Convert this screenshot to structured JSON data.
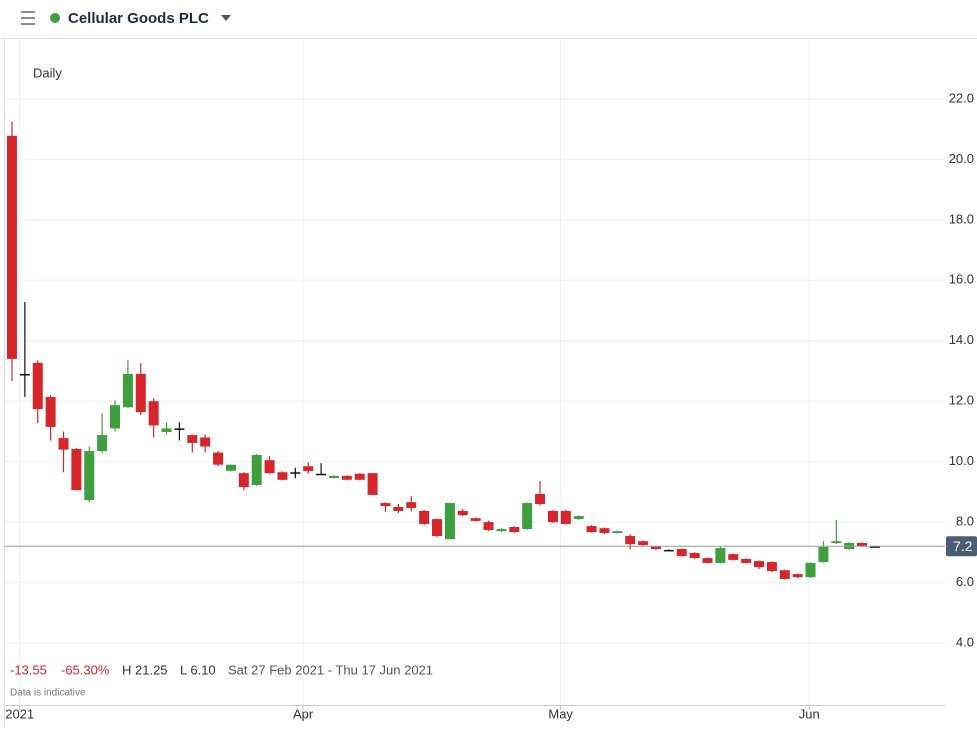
{
  "header": {
    "title": "Cellular Goods PLC"
  },
  "chart_data": {
    "type": "candlestick",
    "interval": "Daily",
    "open": [
      20.78,
      12.9,
      13.27,
      12.14,
      10.78,
      10.42,
      8.73,
      10.35,
      11.1,
      11.8,
      12.9,
      12.0,
      10.98,
      11.1,
      10.88,
      10.8,
      10.3,
      9.7,
      9.62,
      9.23,
      10.05,
      9.65,
      9.65,
      9.85,
      9.6,
      9.46,
      9.53,
      9.6,
      9.62,
      8.63,
      8.5,
      8.66,
      8.37,
      8.1,
      7.44,
      8.37,
      8.13,
      8.0,
      7.7,
      7.84,
      7.77,
      8.93,
      8.37,
      8.37,
      8.1,
      7.87,
      7.8,
      7.64,
      7.54,
      7.37,
      7.2,
      7.08,
      7.11,
      6.98,
      6.81,
      6.65,
      6.94,
      6.78,
      6.71,
      6.68,
      6.41,
      6.28,
      6.18,
      6.68,
      7.31,
      7.11,
      7.31,
      7.2
    ],
    "high": [
      21.25,
      15.28,
      13.35,
      12.2,
      11.0,
      10.45,
      10.5,
      11.6,
      12.03,
      13.36,
      13.26,
      12.1,
      11.3,
      11.3,
      10.9,
      10.9,
      10.35,
      9.9,
      9.65,
      10.25,
      10.18,
      9.68,
      9.8,
      9.98,
      9.95,
      9.55,
      9.55,
      9.62,
      9.62,
      8.65,
      8.6,
      8.86,
      8.4,
      8.12,
      8.65,
      8.43,
      8.15,
      8.05,
      7.8,
      7.86,
      8.65,
      9.36,
      8.4,
      8.4,
      8.22,
      7.9,
      7.82,
      7.72,
      7.6,
      7.39,
      7.22,
      7.1,
      7.13,
      7.0,
      6.83,
      7.18,
      6.96,
      6.8,
      6.73,
      6.7,
      6.43,
      6.3,
      6.67,
      7.37,
      8.07,
      7.33,
      7.33,
      7.22
    ],
    "low": [
      12.67,
      12.14,
      11.28,
      10.7,
      9.65,
      9.05,
      8.66,
      10.3,
      11.0,
      11.78,
      11.54,
      10.8,
      10.9,
      10.7,
      10.3,
      10.3,
      9.85,
      9.68,
      9.05,
      9.2,
      9.6,
      9.38,
      9.45,
      9.6,
      9.58,
      9.45,
      9.38,
      9.38,
      8.9,
      8.33,
      8.3,
      8.35,
      7.9,
      7.5,
      7.42,
      8.2,
      8.02,
      7.7,
      7.68,
      7.65,
      7.75,
      8.55,
      7.98,
      7.92,
      8.08,
      7.65,
      7.6,
      7.62,
      7.1,
      7.22,
      7.08,
      7.05,
      6.86,
      6.79,
      6.63,
      6.63,
      6.73,
      6.63,
      6.45,
      6.35,
      6.1,
      6.15,
      6.15,
      6.66,
      7.28,
      7.09,
      7.18,
      7.18
    ],
    "close": [
      13.4,
      12.9,
      11.74,
      11.15,
      10.4,
      9.06,
      10.35,
      10.88,
      11.87,
      12.9,
      11.64,
      11.2,
      11.1,
      11.1,
      10.62,
      10.5,
      9.9,
      9.9,
      9.16,
      10.22,
      9.62,
      9.4,
      9.65,
      9.69,
      9.6,
      9.53,
      9.4,
      9.4,
      8.9,
      8.53,
      8.37,
      8.47,
      7.94,
      7.54,
      8.63,
      8.23,
      8.04,
      7.74,
      7.77,
      7.67,
      8.63,
      8.6,
      8.0,
      7.94,
      8.2,
      7.67,
      7.64,
      7.7,
      7.27,
      7.24,
      7.11,
      7.08,
      6.88,
      6.81,
      6.65,
      7.14,
      6.75,
      6.65,
      6.51,
      6.38,
      6.12,
      6.18,
      6.65,
      7.18,
      7.37,
      7.31,
      7.2,
      7.2
    ],
    "up_color": "#3f9f3f",
    "down_color": "#d7262b",
    "flat_color": "#111111",
    "last_price": 7.2,
    "ylim": [
      1.95,
      23.95
    ],
    "yticks": [
      {
        "value": 4,
        "label": "4.0"
      },
      {
        "value": 6,
        "label": "6.0"
      },
      {
        "value": 8,
        "label": "8.0"
      },
      {
        "value": 10,
        "label": "10.0"
      },
      {
        "value": 12,
        "label": "12.0"
      },
      {
        "value": 14,
        "label": "14.0"
      },
      {
        "value": 16,
        "label": "16.0"
      },
      {
        "value": 18,
        "label": "18.0"
      },
      {
        "value": 20,
        "label": "20.0"
      },
      {
        "value": 22,
        "label": "22.0"
      }
    ],
    "xlim": [
      -0.93,
      72.44
    ],
    "xticks": [
      {
        "value": 0.6,
        "label": "2021"
      },
      {
        "value": 22.6,
        "label": "Apr"
      },
      {
        "value": 42.6,
        "label": "May"
      },
      {
        "value": 61.9,
        "label": "Jun"
      }
    ],
    "grid": true,
    "stats": {
      "change": "-13.55",
      "change_pct": "-65.30%",
      "high": "H 21.25",
      "low": "L 6.10",
      "range": "Sat 27 Feb 2021 - Thu 17 Jun 2021"
    },
    "note": "Data is indicative"
  }
}
